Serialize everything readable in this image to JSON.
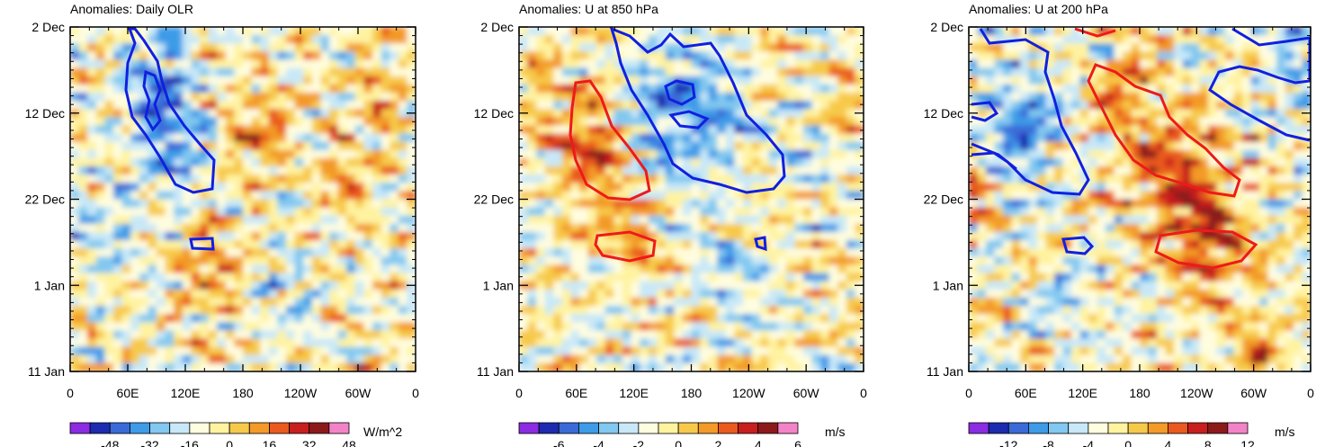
{
  "chart_data": [
    {
      "type": "heatmap",
      "title": "Anomalies: Daily OLR",
      "x_ticks": [
        "0",
        "60E",
        "120E",
        "180",
        "120W",
        "60W",
        "0"
      ],
      "y_ticks": [
        "2 Dec",
        "12 Dec",
        "22 Dec",
        "1 Jan",
        "11 Jan"
      ],
      "colorbar": {
        "labels": [
          "-48",
          "-32",
          "-16",
          "0",
          "16",
          "32",
          "48"
        ],
        "units": "W/m^2",
        "range": [
          -56,
          56
        ]
      },
      "contours": [
        {
          "color": "blue",
          "label": "negative"
        },
        {
          "color": "blue",
          "label": "negative"
        }
      ]
    },
    {
      "type": "heatmap",
      "title": "Anomalies: U at 850 hPa",
      "x_ticks": [
        "0",
        "60E",
        "120E",
        "180",
        "120W",
        "60W",
        "0"
      ],
      "y_ticks": [
        "2 Dec",
        "12 Dec",
        "22 Dec",
        "1 Jan",
        "11 Jan"
      ],
      "colorbar": {
        "labels": [
          "-6",
          "-4",
          "-2",
          "0",
          "2",
          "4",
          "6"
        ],
        "units": "m/s",
        "range": [
          -7,
          7
        ]
      },
      "contours": [
        {
          "color": "blue",
          "label": "negative"
        },
        {
          "color": "red",
          "label": "positive"
        }
      ]
    },
    {
      "type": "heatmap",
      "title": "Anomalies: U at 200 hPa",
      "x_ticks": [
        "0",
        "60E",
        "120E",
        "180",
        "120W",
        "60W",
        "0"
      ],
      "y_ticks": [
        "2 Dec",
        "12 Dec",
        "22 Dec",
        "1 Jan",
        "11 Jan"
      ],
      "colorbar": {
        "labels": [
          "-12",
          "-8",
          "-4",
          "0",
          "4",
          "8",
          "12"
        ],
        "units": "m/s",
        "range": [
          -14,
          14
        ]
      },
      "contours": [
        {
          "color": "blue",
          "label": "negative"
        },
        {
          "color": "red",
          "label": "positive"
        }
      ]
    }
  ],
  "palette": [
    "#8b2be2",
    "#1c2bb0",
    "#3a6ad8",
    "#3d9be8",
    "#82c8f0",
    "#c8e8f8",
    "#fffddf",
    "#fff3a0",
    "#f7c94a",
    "#f39a28",
    "#ea5a1e",
    "#c81e1e",
    "#8c1a1a",
    "#f283c7"
  ],
  "contour_colors": {
    "blue": "#1020e0",
    "red": "#ee1a1a"
  }
}
